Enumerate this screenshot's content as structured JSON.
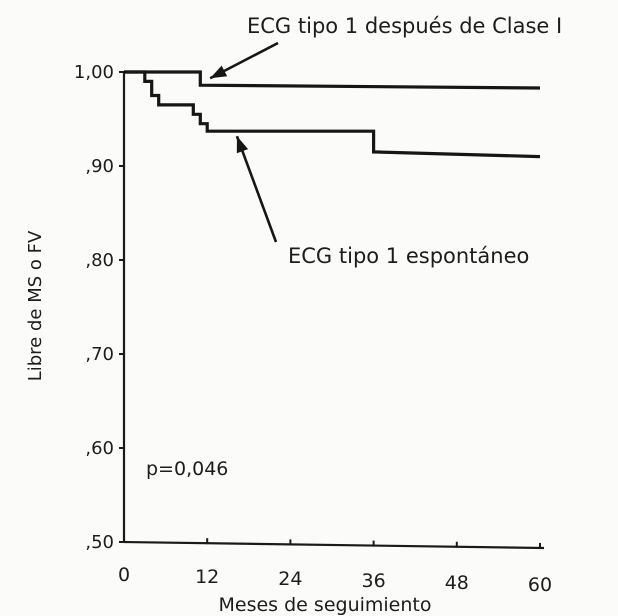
{
  "chart_data": {
    "type": "line",
    "xlabel": "Meses de seguimiento",
    "ylabel": "Libre de MS o FV",
    "x_ticks": [
      0,
      12,
      24,
      36,
      48,
      60
    ],
    "x_tick_labels": [
      "0",
      "12",
      "24",
      "36",
      "48",
      "60"
    ],
    "y_ticks": [
      0.5,
      0.6,
      0.7,
      0.8,
      0.9,
      1.0
    ],
    "y_tick_labels": [
      ",50",
      ",60",
      ",70",
      ",80",
      ",90",
      "1,00"
    ],
    "xlim": [
      0,
      60
    ],
    "ylim": [
      0.5,
      1.0
    ],
    "grid": false,
    "series": [
      {
        "name": "ECG tipo 1 después de Clase I",
        "step": true,
        "points": [
          [
            0,
            1.0
          ],
          [
            11,
            1.0
          ],
          [
            11,
            0.986
          ],
          [
            60,
            0.983
          ]
        ]
      },
      {
        "name": "ECG tipo 1 espontáneo",
        "step": true,
        "points": [
          [
            0,
            1.0
          ],
          [
            3,
            1.0
          ],
          [
            3,
            0.99
          ],
          [
            4,
            0.99
          ],
          [
            4,
            0.975
          ],
          [
            5,
            0.975
          ],
          [
            5,
            0.965
          ],
          [
            10,
            0.965
          ],
          [
            10,
            0.955
          ],
          [
            11,
            0.955
          ],
          [
            11,
            0.945
          ],
          [
            12,
            0.945
          ],
          [
            12,
            0.937
          ],
          [
            36,
            0.937
          ],
          [
            36,
            0.915
          ],
          [
            60,
            0.91
          ]
        ]
      }
    ],
    "annotations": [
      {
        "text": "ECG tipo 1 después de Clase I",
        "points_to": "series-0",
        "target": [
          12,
          0.988
        ]
      },
      {
        "text": "ECG tipo 1 espontáneo",
        "points_to": "series-1",
        "target": [
          16,
          0.936
        ]
      },
      {
        "text": "p=0,046",
        "at": [
          3,
          0.585
        ]
      }
    ]
  }
}
